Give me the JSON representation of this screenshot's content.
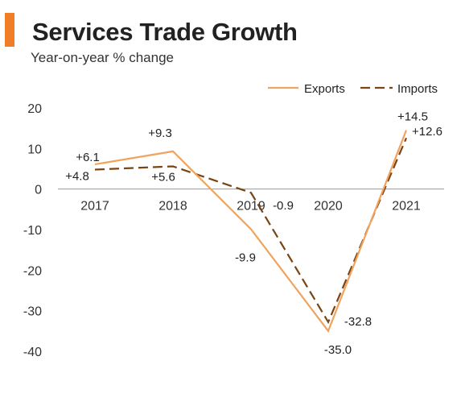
{
  "header": {
    "title": "Services Trade Growth",
    "subtitle": "Year-on-year % change",
    "accent_color": "#f07e26"
  },
  "chart_data": {
    "type": "line",
    "title": "Services Trade Growth",
    "subtitle": "Year-on-year % change",
    "x": [
      "2017",
      "2018",
      "2019",
      "2020",
      "2021"
    ],
    "ylim": [
      -40,
      20
    ],
    "yticks": [
      20,
      10,
      0,
      -10,
      -20,
      -30,
      -40
    ],
    "grid": false,
    "legend_position": "top-right",
    "series": [
      {
        "name": "Exports",
        "values": [
          6.1,
          9.3,
          -9.9,
          -35.0,
          14.5
        ],
        "labels": [
          "+6.1",
          "+9.3",
          "-9.9",
          "-35.0",
          "+14.5"
        ],
        "color": "#f0a35e",
        "style": "solid"
      },
      {
        "name": "Imports",
        "values": [
          4.8,
          5.6,
          -0.9,
          -32.8,
          12.6
        ],
        "labels": [
          "+4.8",
          "+5.6",
          "-0.9",
          "-32.8",
          "+12.6"
        ],
        "color": "#7a4413",
        "style": "dashed"
      }
    ]
  }
}
